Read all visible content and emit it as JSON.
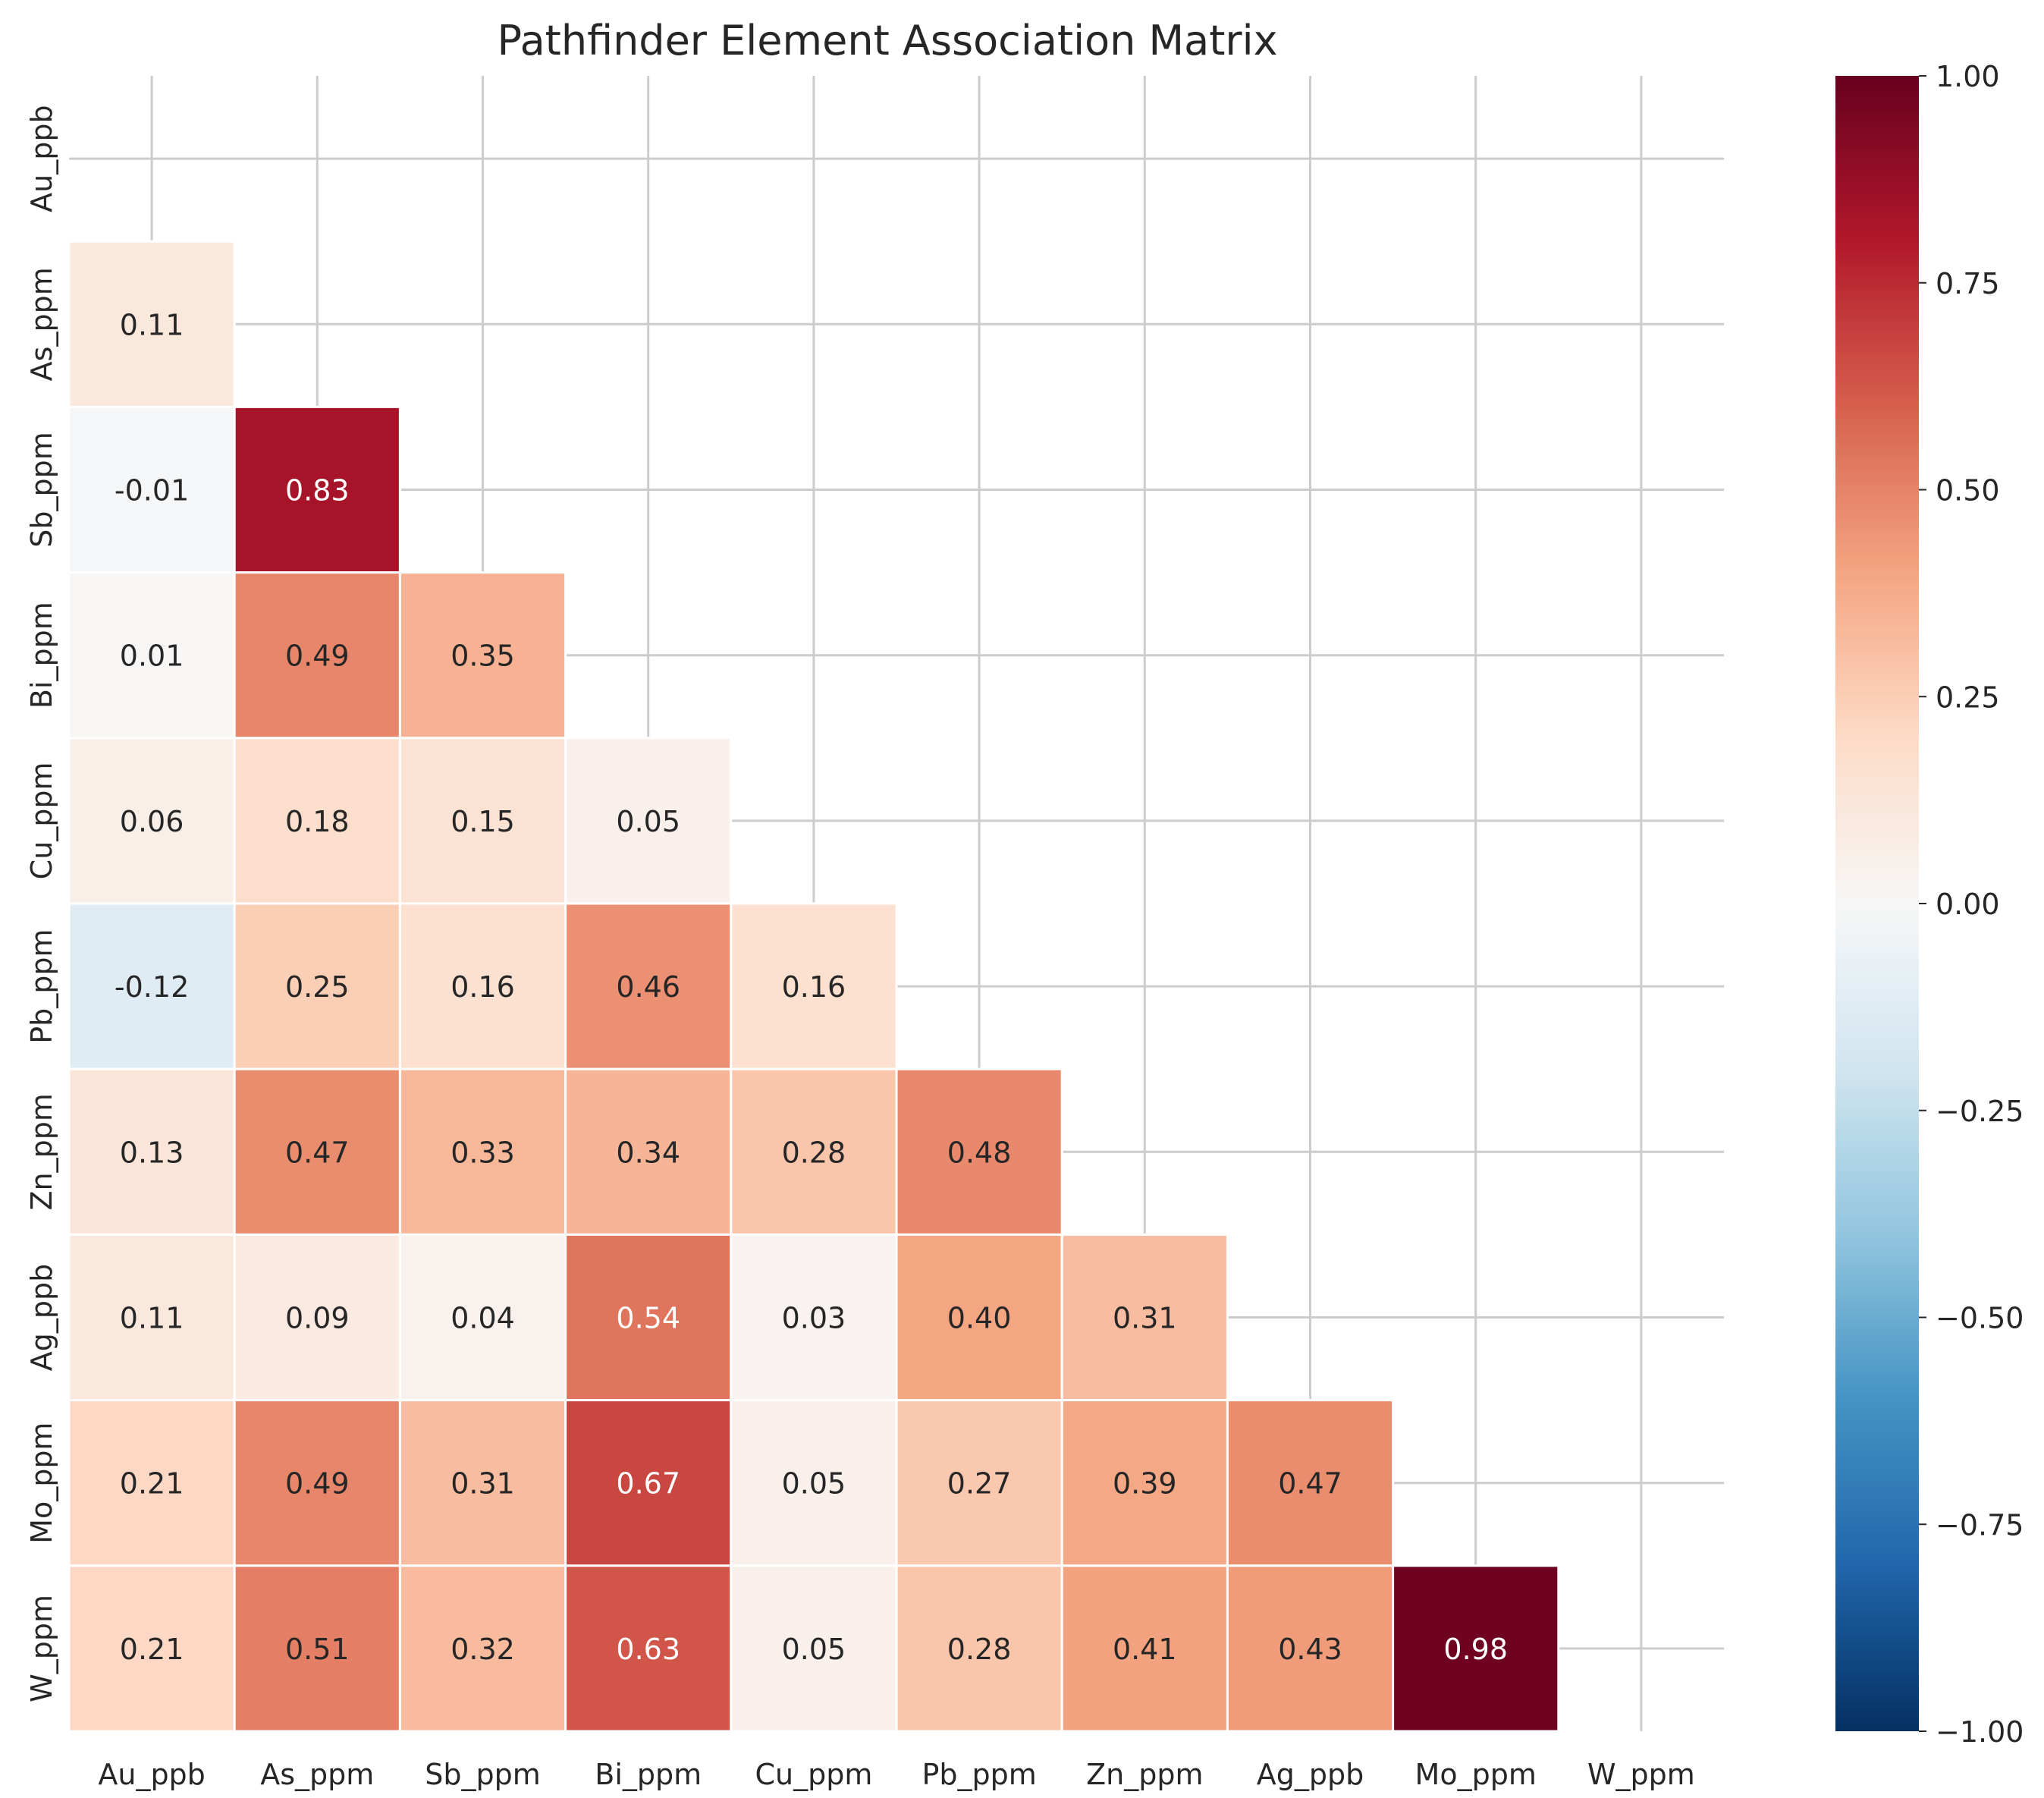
{
  "chart_data": {
    "type": "heatmap",
    "title": "Pathfinder Element Association Matrix",
    "xlabel": "",
    "ylabel": "",
    "variables": [
      "Au_ppb",
      "As_ppm",
      "Sb_ppm",
      "Bi_ppm",
      "Cu_ppm",
      "Pb_ppm",
      "Zn_ppm",
      "Ag_ppb",
      "Mo_ppm",
      "W_ppm"
    ],
    "mask": "upper triangle incl. diagonal",
    "rows": [
      [],
      [
        0.11
      ],
      [
        -0.01,
        0.83
      ],
      [
        0.01,
        0.49,
        0.35
      ],
      [
        0.06,
        0.18,
        0.15,
        0.05
      ],
      [
        -0.12,
        0.25,
        0.16,
        0.46,
        0.16
      ],
      [
        0.13,
        0.47,
        0.33,
        0.34,
        0.28,
        0.48
      ],
      [
        0.11,
        0.09,
        0.04,
        0.54,
        0.03,
        0.4,
        0.31
      ],
      [
        0.21,
        0.49,
        0.31,
        0.67,
        0.05,
        0.27,
        0.39,
        0.47
      ],
      [
        0.21,
        0.51,
        0.32,
        0.63,
        0.05,
        0.28,
        0.41,
        0.43,
        0.98
      ]
    ],
    "colormap": "RdBu_r",
    "vmin": -1.0,
    "vmax": 1.0,
    "colorbar_ticks": [
      "1.00",
      "0.75",
      "0.50",
      "0.25",
      "0.00",
      "−0.25",
      "−0.50",
      "−0.75",
      "−1.00"
    ],
    "grid": true
  }
}
